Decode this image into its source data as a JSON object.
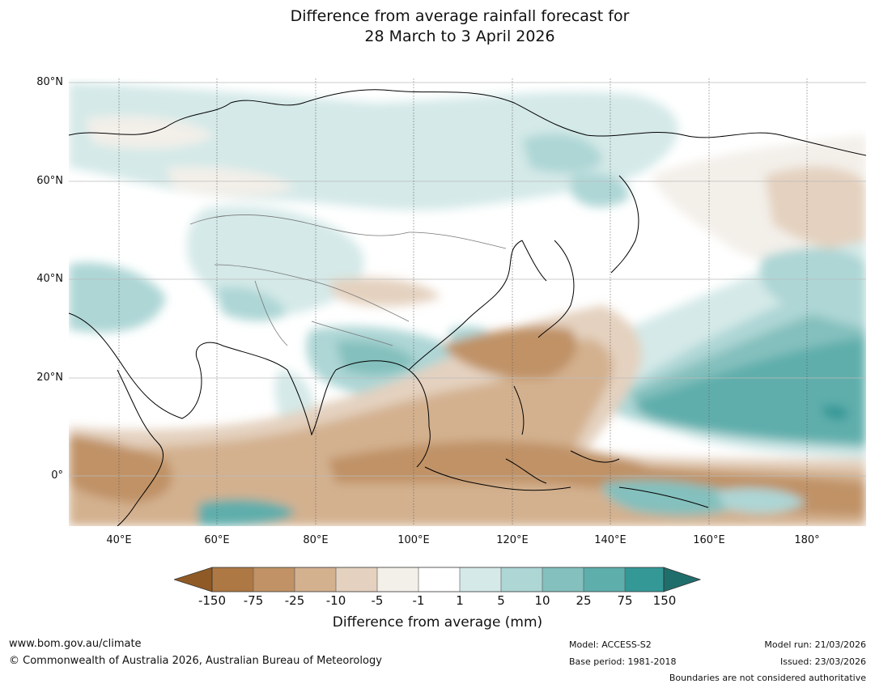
{
  "title": {
    "line1": "Difference from average rainfall forecast for",
    "line2": "28 March to 3 April 2026"
  },
  "map": {
    "region": "Asia and Western Pacific",
    "lat_labels": [
      "80°N",
      "60°N",
      "40°N",
      "20°N",
      "0°"
    ],
    "lon_labels": [
      "40°E",
      "60°E",
      "80°E",
      "100°E",
      "120°E",
      "140°E",
      "160°E",
      "180°"
    ]
  },
  "legend": {
    "title": "Difference from average (mm)",
    "ticks": [
      "-150",
      "-75",
      "-25",
      "-10",
      "-5",
      "-1",
      "1",
      "5",
      "10",
      "25",
      "75",
      "150"
    ],
    "colors": {
      "below_150": "#8f5a25",
      "-150_-75": "#ad7844",
      "-75_-25": "#c09266",
      "-25_-10": "#d3b18f",
      "-10_-5": "#e4d1bf",
      "-5_-1": "#f3efe9",
      "-1_1": "#ffffff",
      "1_5": "#d4e9e8",
      "5_10": "#add6d5",
      "10_25": "#84c0bd",
      "25_75": "#5eaeac",
      "75_150": "#349896",
      "above_150": "#206e6c"
    }
  },
  "footer": {
    "website": "www.bom.gov.au/climate",
    "copyright": "© Commonwealth of Australia 2026, Australian Bureau of Meteorology",
    "model": "Model: ACCESS-S2",
    "base_period": "Base period: 1981-2018",
    "model_run": "Model run: 21/03/2026",
    "issued": "Issued: 23/03/2026",
    "disclaimer": "Boundaries are not considered authoritative"
  }
}
